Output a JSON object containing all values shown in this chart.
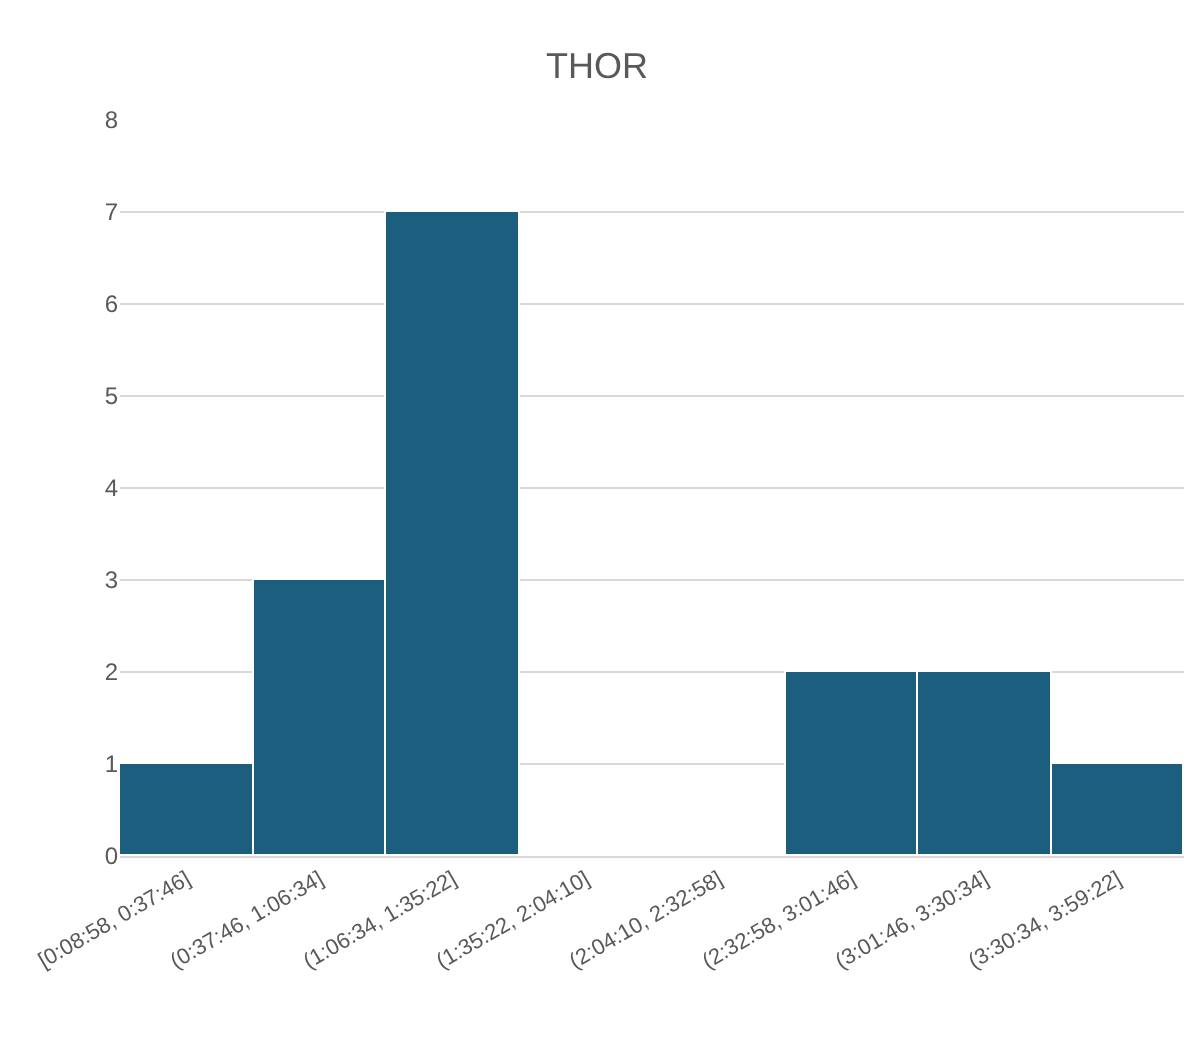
{
  "chart_data": {
    "type": "bar",
    "title": "THOR",
    "categories": [
      "[0:08:58, 0:37:46]",
      "(0:37:46, 1:06:34]",
      "(1:06:34, 1:35:22]",
      "(1:35:22, 2:04:10]",
      "(2:04:10, 2:32:58]",
      "(2:32:58, 3:01:46]",
      "(3:01:46, 3:30:34]",
      "(3:30:34, 3:59:22]"
    ],
    "values": [
      1,
      3,
      7,
      0,
      0,
      2,
      2,
      1
    ],
    "color": "#1b5e7e",
    "ylim": [
      0,
      8
    ],
    "yticks": [
      0,
      1,
      2,
      3,
      4,
      5,
      6,
      7,
      8
    ],
    "grid": "y",
    "legend": false
  }
}
